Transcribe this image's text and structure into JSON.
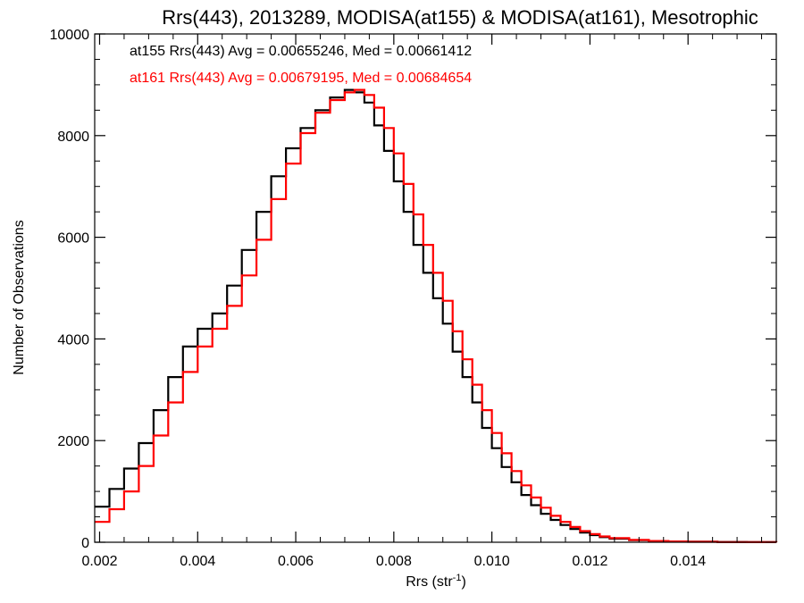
{
  "chart_data": {
    "type": "line",
    "title": "Rrs(443), 2013289, MODISA(at155) & MODISA(at161), Mesotrophic",
    "xlabel_main": "Rrs (str",
    "xlabel_sup": "-1",
    "xlabel_close": ")",
    "ylabel": "Number of Observations",
    "xlim": [
      0.0019,
      0.0158
    ],
    "ylim": [
      0,
      10000
    ],
    "x_ticks": [
      0.002,
      0.004,
      0.006,
      0.008,
      0.01,
      0.012,
      0.014
    ],
    "x_tick_labels": [
      "0.002",
      "0.004",
      "0.006",
      "0.008",
      "0.010",
      "0.012",
      "0.014"
    ],
    "y_ticks": [
      0,
      2000,
      4000,
      6000,
      8000,
      10000
    ],
    "y_tick_labels": [
      "0",
      "2000",
      "4000",
      "6000",
      "8000",
      "10000"
    ],
    "grid": false,
    "step_style": "histogram",
    "annotations": [
      "at155 Rrs(443) Avg = 0.00655246, Med = 0.00661412",
      "at161 Rrs(443) Avg = 0.00679195, Med = 0.00684654"
    ],
    "series": [
      {
        "name": "at155",
        "color": "#000000",
        "x": [
          0.0019,
          0.0022,
          0.0025,
          0.0028,
          0.0031,
          0.0034,
          0.0037,
          0.004,
          0.0043,
          0.0046,
          0.0049,
          0.0052,
          0.0055,
          0.0058,
          0.0061,
          0.0064,
          0.0067,
          0.007,
          0.0072,
          0.0074,
          0.0076,
          0.0078,
          0.008,
          0.0082,
          0.0084,
          0.0086,
          0.0088,
          0.009,
          0.0092,
          0.0094,
          0.0096,
          0.0098,
          0.01,
          0.0102,
          0.0104,
          0.0106,
          0.0108,
          0.011,
          0.0112,
          0.0114,
          0.0116,
          0.0118,
          0.012,
          0.0122,
          0.0124,
          0.0128,
          0.0132,
          0.0136,
          0.014,
          0.0146,
          0.0152,
          0.0158
        ],
        "y": [
          700,
          1050,
          1450,
          1950,
          2600,
          3250,
          3850,
          4200,
          4500,
          5050,
          5750,
          6500,
          7200,
          7750,
          8150,
          8500,
          8750,
          8900,
          8850,
          8650,
          8200,
          7700,
          7100,
          6500,
          5850,
          5300,
          4800,
          4300,
          3750,
          3250,
          2750,
          2250,
          1850,
          1480,
          1180,
          930,
          730,
          560,
          440,
          340,
          260,
          190,
          140,
          100,
          70,
          40,
          25,
          15,
          10,
          5,
          2,
          0
        ]
      },
      {
        "name": "at161",
        "color": "#ff0000",
        "x": [
          0.0019,
          0.0022,
          0.0025,
          0.0028,
          0.0031,
          0.0034,
          0.0037,
          0.004,
          0.0043,
          0.0046,
          0.0049,
          0.0052,
          0.0055,
          0.0058,
          0.0061,
          0.0064,
          0.0067,
          0.007,
          0.0072,
          0.0074,
          0.0076,
          0.0078,
          0.008,
          0.0082,
          0.0084,
          0.0086,
          0.0088,
          0.009,
          0.0092,
          0.0094,
          0.0096,
          0.0098,
          0.01,
          0.0102,
          0.0104,
          0.0106,
          0.0108,
          0.011,
          0.0112,
          0.0114,
          0.0116,
          0.0118,
          0.012,
          0.0122,
          0.0124,
          0.0128,
          0.0132,
          0.0136,
          0.014,
          0.0146,
          0.0152,
          0.0158
        ],
        "y": [
          400,
          650,
          1000,
          1500,
          2100,
          2750,
          3350,
          3850,
          4200,
          4650,
          5250,
          5950,
          6750,
          7450,
          8050,
          8450,
          8700,
          8850,
          8900,
          8800,
          8550,
          8150,
          7650,
          7050,
          6450,
          5850,
          5300,
          4750,
          4150,
          3600,
          3100,
          2600,
          2150,
          1750,
          1400,
          1120,
          880,
          680,
          520,
          400,
          300,
          220,
          160,
          115,
          80,
          45,
          25,
          15,
          8,
          3,
          1,
          0
        ]
      }
    ]
  }
}
